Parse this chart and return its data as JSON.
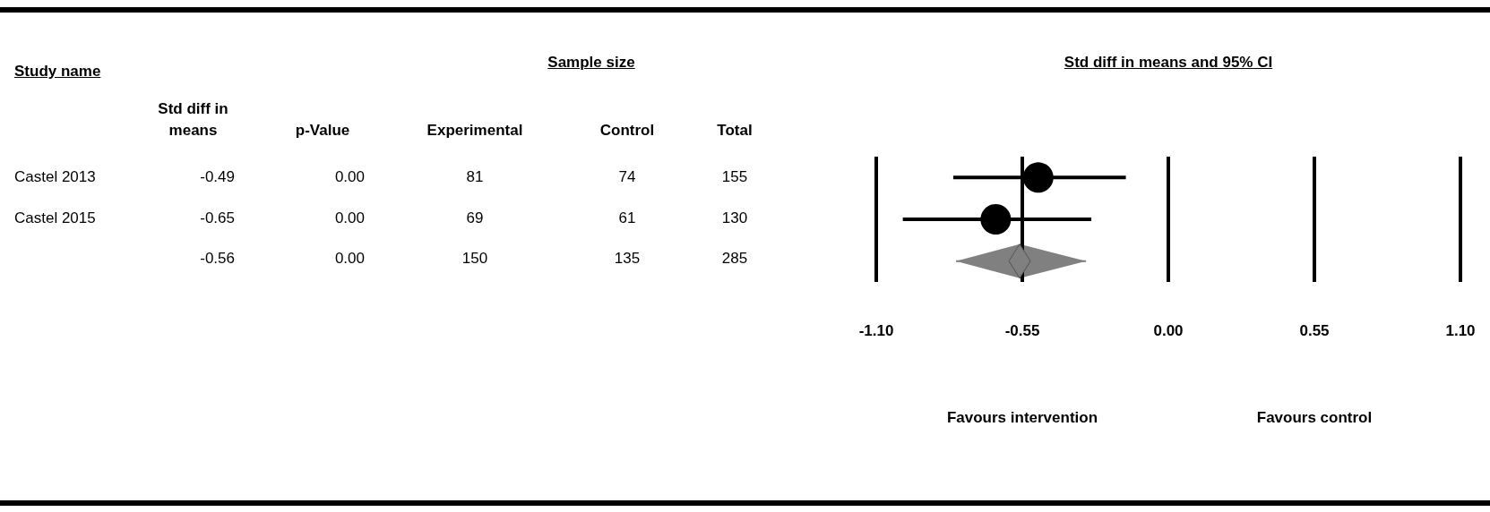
{
  "chart_data": [
    {
      "type": "other",
      "title": "Sample size",
      "ylabel": "Study name",
      "categories": [
        "Std diff in means",
        "p-Value",
        "Experimental",
        "Control",
        "Total"
      ],
      "y_categories": [
        "Castel 2013",
        "Castel 2015",
        null
      ],
      "cell_labels": [
        [
          "-0.49",
          "0.00",
          "81",
          "74",
          "155"
        ],
        [
          "-0.65",
          "0.00",
          "69",
          "61",
          "130"
        ],
        [
          "-0.56",
          "0.00",
          "150",
          "135",
          "285"
        ]
      ]
    },
    {
      "type": "scatter",
      "orientation": "horizontal",
      "title": "Std diff in means and 95% CI",
      "categories": [
        null,
        null,
        null
      ],
      "tick_labels": "x",
      "grid": "x",
      "xlim": [
        -1.1,
        1.1
      ],
      "xticks": [
        {
          "value": -1.1,
          "label": "-1.10"
        },
        {
          "value": -0.55,
          "label": "-0.55"
        },
        {
          "value": 0,
          "label": "0.00"
        },
        {
          "value": 0.55,
          "label": "0.55"
        },
        {
          "value": 1.1,
          "label": "1.10"
        }
      ],
      "annotations": [
        "Favours intervention",
        "Favours control"
      ],
      "series": [
        {
          "type": "scatter",
          "marker": "circle",
          "color": "#000000",
          "values": [
            -0.49,
            -0.65,
            null
          ],
          "errors": [
            [
              -0.81,
              -0.16
            ],
            [
              -1.0,
              -0.29
            ],
            null
          ]
        },
        {
          "type": "scatter",
          "marker": "diamond",
          "color": "#808080",
          "values": [
            null,
            null,
            -0.56
          ],
          "errors": [
            null,
            null,
            [
              -0.8,
              -0.31
            ]
          ]
        }
      ]
    }
  ]
}
